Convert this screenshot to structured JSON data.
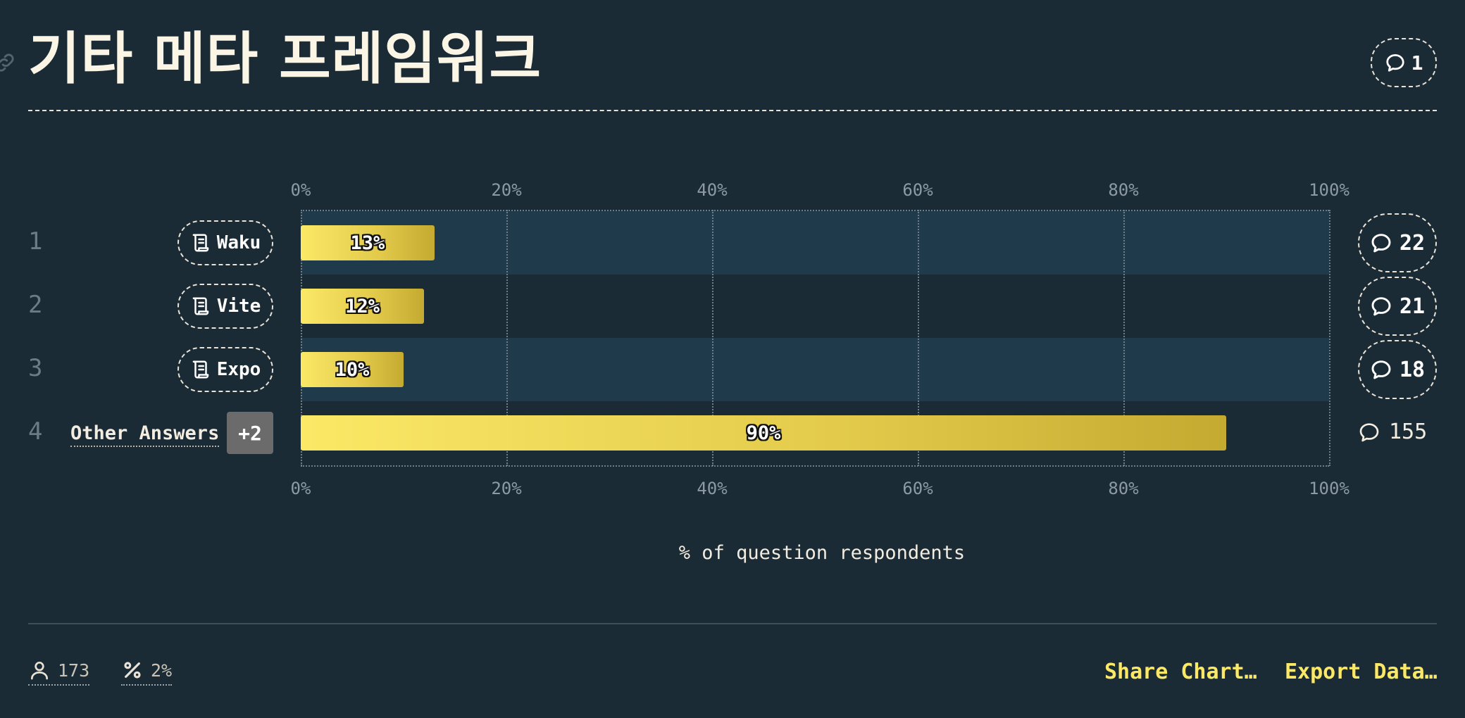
{
  "header": {
    "title": "기타 메타 프레임워크",
    "comment_count": "1"
  },
  "chart_data": {
    "type": "bar",
    "orientation": "horizontal",
    "categories": [
      "Waku",
      "Vite",
      "Expo",
      "Other Answers"
    ],
    "values": [
      13,
      12,
      10,
      90
    ],
    "value_labels": [
      "13%",
      "12%",
      "10%",
      "90%"
    ],
    "ranks": [
      "1",
      "2",
      "3",
      "4"
    ],
    "comment_counts": [
      "22",
      "21",
      "18",
      "155"
    ],
    "x_ticks": [
      "0%",
      "20%",
      "40%",
      "60%",
      "80%",
      "100%"
    ],
    "xlim": [
      0,
      100
    ],
    "xlabel": "% of question respondents",
    "other_extra_badge": "+2",
    "grid": true
  },
  "footer": {
    "respondents": "173",
    "percent": "2%",
    "share_label": "Share Chart…",
    "export_label": "Export Data…"
  },
  "colors": {
    "background": "#1a2b35",
    "band": "#1f3a4a",
    "bar_start": "#fbe966",
    "bar_end": "#c4aa30",
    "accent": "#fbe966"
  }
}
